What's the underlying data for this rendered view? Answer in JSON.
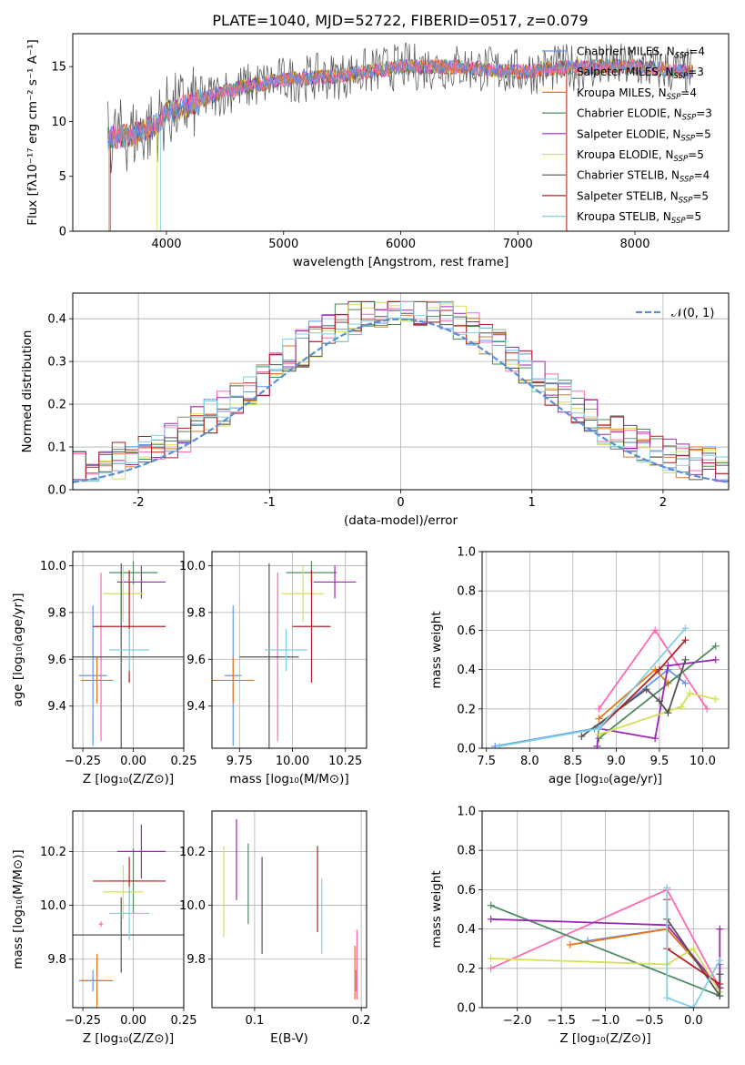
{
  "figure_title": "PLATE=1040, MJD=52722, FIBERID=0517, z=0.079",
  "colors": [
    "#6495ed",
    "#ff69b4",
    "#e8751a",
    "#4b8b5f",
    "#9a28b4",
    "#d4e157",
    "#555555",
    "#b22222",
    "#80d0e0"
  ],
  "chart_data": [
    {
      "id": "spectrum",
      "type": "line",
      "title": "PLATE=1040, MJD=52722, FIBERID=0517, z=0.079",
      "xlabel": "wavelength [Angstrom, rest frame]",
      "ylabel": "Flux [fλ10⁻¹⁷ erg cm⁻² s⁻¹ A⁻¹]",
      "xlim": [
        3200,
        8800
      ],
      "ylim": [
        0,
        18
      ],
      "xticks": [
        4000,
        5000,
        6000,
        7000,
        8000
      ],
      "yticks": [
        0,
        5,
        10,
        15
      ],
      "grid": false,
      "legend_location": "top-right",
      "continuum": [
        [
          3500,
          8.5
        ],
        [
          3700,
          8.8
        ],
        [
          3900,
          9.5
        ],
        [
          4000,
          10.8
        ],
        [
          4200,
          11.5
        ],
        [
          4500,
          12.8
        ],
        [
          5000,
          13.8
        ],
        [
          5500,
          14.2
        ],
        [
          6000,
          15.0
        ],
        [
          6500,
          15.0
        ],
        [
          7000,
          14.5
        ],
        [
          7500,
          15.0
        ],
        [
          8000,
          15.0
        ],
        [
          8500,
          14.5
        ]
      ],
      "series": [
        {
          "name": "Chabrier MILES, N_SSP=4",
          "color": "#6495ed"
        },
        {
          "name": "Salpeter MILES, N_SSP=3",
          "color": "#ff69b4"
        },
        {
          "name": "Kroupa MILES, N_SSP=4",
          "color": "#e8751a"
        },
        {
          "name": "Chabrier ELODIE, N_SSP=3",
          "color": "#4b8b5f"
        },
        {
          "name": "Salpeter ELODIE, N_SSP=5",
          "color": "#9a28b4"
        },
        {
          "name": "Kroupa ELODIE, N_SSP=5",
          "color": "#d4e157"
        },
        {
          "name": "Chabrier STELIB, N_SSP=4",
          "color": "#555555"
        },
        {
          "name": "Salpeter STELIB, N_SSP=5",
          "color": "#b22222"
        },
        {
          "name": "Kroupa STELIB, N_SSP=5",
          "color": "#80d0e0"
        }
      ]
    },
    {
      "id": "residuals",
      "type": "histogram",
      "xlabel": "(data-model)/error",
      "ylabel": "Normed distribution",
      "xlim": [
        -2.5,
        2.5
      ],
      "ylim": [
        0,
        0.46
      ],
      "xticks": [
        -2,
        -1,
        0,
        1,
        2
      ],
      "yticks": [
        0.0,
        0.1,
        0.2,
        0.3,
        0.4
      ],
      "grid": true,
      "legend_location": "top-right",
      "bins": [
        -2.5,
        -2.4,
        -2.3,
        -2.2,
        -2.1,
        -2.0,
        -1.9,
        -1.8,
        -1.7,
        -1.6,
        -1.5,
        -1.4,
        -1.3,
        -1.2,
        -1.1,
        -1.0,
        -0.9,
        -0.8,
        -0.7,
        -0.6,
        -0.5,
        -0.4,
        -0.3,
        -0.2,
        -0.1,
        0.0,
        0.1,
        0.2,
        0.3,
        0.4,
        0.5,
        0.6,
        0.7,
        0.8,
        0.9,
        1.0,
        1.1,
        1.2,
        1.3,
        1.4,
        1.5,
        1.6,
        1.7,
        1.8,
        1.9,
        2.0,
        2.1,
        2.2,
        2.3,
        2.4,
        2.5
      ],
      "reference": {
        "name": "𝒩(0, 1)",
        "mean": 0,
        "sigma": 1,
        "color": "#5a8fd6"
      },
      "series_colors": [
        "#6495ed",
        "#ff69b4",
        "#e8751a",
        "#4b8b5f",
        "#9a28b4",
        "#d4e157",
        "#555555",
        "#b22222",
        "#80d0e0"
      ]
    },
    {
      "id": "age_vs_z",
      "type": "errorbar",
      "xlabel": "Z [log₁₀(Z/Z⊙)]",
      "ylabel": "age  [log₁₀(age/yr)]",
      "xlim": [
        -0.3,
        0.25
      ],
      "ylim": [
        9.22,
        10.06
      ],
      "xticks": [
        -0.25,
        0.0,
        0.25
      ],
      "xticklabels": [
        "−0.25",
        "0.00",
        "0.25"
      ],
      "yticks": [
        9.4,
        9.6,
        9.8,
        10.0
      ],
      "grid": true,
      "points": [
        {
          "x": -0.2,
          "xerr": 0.07,
          "y": 9.53,
          "yerr": 0.3,
          "color": "#6495ed"
        },
        {
          "x": -0.16,
          "xerr": 0.01,
          "y": 9.61,
          "yerr": 0.36,
          "color": "#ff69b4"
        },
        {
          "x": -0.18,
          "xerr": 0.08,
          "y": 9.51,
          "yerr": 0.1,
          "color": "#e8751a"
        },
        {
          "x": 0.0,
          "xerr": 0.12,
          "y": 9.97,
          "yerr": 0.05,
          "color": "#4b8b5f"
        },
        {
          "x": 0.04,
          "xerr": 0.12,
          "y": 9.93,
          "yerr": 0.07,
          "color": "#9a28b4"
        },
        {
          "x": -0.05,
          "xerr": 0.1,
          "y": 9.88,
          "yerr": 0.12,
          "color": "#d4e157"
        },
        {
          "x": -0.06,
          "xerr": 0.35,
          "y": 9.61,
          "yerr": 0.4,
          "color": "#555555"
        },
        {
          "x": -0.02,
          "xerr": 0.18,
          "y": 9.74,
          "yerr": 0.24,
          "color": "#b22222"
        },
        {
          "x": -0.02,
          "xerr": 0.1,
          "y": 9.64,
          "yerr": 0.09,
          "color": "#80d0e0"
        }
      ]
    },
    {
      "id": "age_vs_mass",
      "type": "errorbar",
      "xlabel": "mass [log₁₀(M/M⊙)]",
      "ylabel": "",
      "xlim": [
        9.62,
        10.35
      ],
      "ylim": [
        9.22,
        10.06
      ],
      "xticks": [
        9.75,
        10.0,
        10.25
      ],
      "xticklabels": [
        "9.75",
        "10.00",
        "10.25"
      ],
      "yticks": [
        9.4,
        9.6,
        9.8,
        10.0
      ],
      "grid": true,
      "points": [
        {
          "x": 9.72,
          "xerr": 0.04,
          "y": 9.53,
          "yerr": 0.3,
          "color": "#6495ed"
        },
        {
          "x": 9.93,
          "xerr": 0.01,
          "y": 9.61,
          "yerr": 0.36,
          "color": "#ff69b4"
        },
        {
          "x": 9.72,
          "xerr": 0.1,
          "y": 9.51,
          "yerr": 0.1,
          "color": "#e8751a"
        },
        {
          "x": 10.09,
          "xerr": 0.12,
          "y": 9.97,
          "yerr": 0.05,
          "color": "#4b8b5f"
        },
        {
          "x": 10.2,
          "xerr": 0.1,
          "y": 9.93,
          "yerr": 0.07,
          "color": "#9a28b4"
        },
        {
          "x": 10.05,
          "xerr": 0.1,
          "y": 9.88,
          "yerr": 0.12,
          "color": "#d4e157"
        },
        {
          "x": 9.89,
          "xerr": 0.14,
          "y": 9.61,
          "yerr": 0.4,
          "color": "#555555"
        },
        {
          "x": 10.09,
          "xerr": 0.09,
          "y": 9.74,
          "yerr": 0.24,
          "color": "#b22222"
        },
        {
          "x": 9.97,
          "xerr": 0.1,
          "y": 9.64,
          "yerr": 0.09,
          "color": "#80d0e0"
        }
      ]
    },
    {
      "id": "weight_vs_age",
      "type": "line",
      "xlabel": "age  [log₁₀(age/yr)]",
      "ylabel": "mass weight",
      "xlim": [
        7.45,
        10.3
      ],
      "ylim": [
        0,
        1
      ],
      "xticks": [
        7.5,
        8.0,
        8.5,
        9.0,
        9.5,
        10.0
      ],
      "xticklabels": [
        "7.5",
        "8.0",
        "8.5",
        "9.0",
        "9.5",
        "10.0"
      ],
      "yticks": [
        0.0,
        0.2,
        0.4,
        0.6,
        0.8,
        1.0
      ],
      "grid": true,
      "series": [
        {
          "color": "#6495ed",
          "points": [
            [
              7.6,
              0.01
            ],
            [
              8.75,
              0.1
            ],
            [
              9.6,
              0.4
            ],
            [
              9.8,
              0.33
            ]
          ]
        },
        {
          "color": "#ff69b4",
          "points": [
            [
              8.8,
              0.2
            ],
            [
              9.45,
              0.6
            ],
            [
              10.05,
              0.2
            ]
          ]
        },
        {
          "color": "#e8751a",
          "points": [
            [
              8.8,
              0.15
            ],
            [
              9.45,
              0.4
            ],
            [
              9.6,
              0.33
            ]
          ]
        },
        {
          "color": "#4b8b5f",
          "points": [
            [
              8.8,
              0.05
            ],
            [
              10.15,
              0.52
            ]
          ]
        },
        {
          "color": "#9a28b4",
          "points": [
            [
              8.78,
              0.01
            ],
            [
              8.8,
              0.1
            ],
            [
              9.45,
              0.05
            ],
            [
              9.6,
              0.42
            ],
            [
              10.15,
              0.45
            ]
          ]
        },
        {
          "color": "#d4e157",
          "points": [
            [
              8.8,
              0.07
            ],
            [
              9.75,
              0.21
            ],
            [
              9.85,
              0.28
            ],
            [
              10.15,
              0.25
            ]
          ]
        },
        {
          "color": "#555555",
          "points": [
            [
              8.6,
              0.06
            ],
            [
              9.35,
              0.3
            ],
            [
              9.5,
              0.24
            ],
            [
              9.6,
              0.18
            ],
            [
              9.8,
              0.45
            ]
          ]
        },
        {
          "color": "#b22222",
          "points": [
            [
              8.8,
              0.1
            ],
            [
              9.5,
              0.4
            ],
            [
              9.8,
              0.55
            ]
          ]
        },
        {
          "color": "#80d0e0",
          "points": [
            [
              7.65,
              0.01
            ],
            [
              8.8,
              0.1
            ],
            [
              9.8,
              0.61
            ]
          ]
        }
      ]
    },
    {
      "id": "mass_vs_z",
      "type": "errorbar",
      "xlabel": "Z [log₁₀(Z/Z⊙)]",
      "ylabel": "mass [log₁₀(M/M⊙)]",
      "xlim": [
        -0.3,
        0.25
      ],
      "ylim": [
        9.62,
        10.35
      ],
      "xticks": [
        -0.25,
        0.0,
        0.25
      ],
      "xticklabels": [
        "−0.25",
        "0.00",
        "0.25"
      ],
      "yticks": [
        9.8,
        10.0,
        10.2
      ],
      "grid": true,
      "points": [
        {
          "x": -0.2,
          "xerr": 0.07,
          "y": 9.72,
          "yerr": 0.04,
          "color": "#6495ed"
        },
        {
          "x": -0.16,
          "xerr": 0.01,
          "y": 9.93,
          "yerr": 0.01,
          "color": "#ff69b4"
        },
        {
          "x": -0.18,
          "xerr": 0.08,
          "y": 9.72,
          "yerr": 0.1,
          "color": "#e8751a"
        },
        {
          "x": 0.0,
          "xerr": 0.12,
          "y": 10.09,
          "yerr": 0.12,
          "color": "#4b8b5f"
        },
        {
          "x": 0.04,
          "xerr": 0.12,
          "y": 10.2,
          "yerr": 0.1,
          "color": "#9a28b4"
        },
        {
          "x": -0.05,
          "xerr": 0.1,
          "y": 10.05,
          "yerr": 0.1,
          "color": "#d4e157"
        },
        {
          "x": -0.06,
          "xerr": 0.35,
          "y": 9.89,
          "yerr": 0.14,
          "color": "#555555"
        },
        {
          "x": -0.02,
          "xerr": 0.18,
          "y": 10.09,
          "yerr": 0.09,
          "color": "#b22222"
        },
        {
          "x": -0.02,
          "xerr": 0.1,
          "y": 9.97,
          "yerr": 0.1,
          "color": "#80d0e0"
        }
      ]
    },
    {
      "id": "mass_vs_ebv",
      "type": "errorbar",
      "xlabel": "E(B-V)",
      "ylabel": "",
      "xlim": [
        0.06,
        0.205
      ],
      "ylim": [
        9.62,
        10.35
      ],
      "xticks": [
        0.1,
        0.2
      ],
      "xticklabels": [
        "0.1",
        "0.2"
      ],
      "yticks": [
        9.8,
        10.0,
        10.2
      ],
      "grid": true,
      "points": [
        {
          "x": 0.195,
          "xerr": 0,
          "y": 9.72,
          "yerr": 0.04,
          "color": "#6495ed"
        },
        {
          "x": 0.196,
          "xerr": 0,
          "y": 9.78,
          "yerr": 0.13,
          "color": "#ff69b4"
        },
        {
          "x": 0.194,
          "xerr": 0,
          "y": 9.75,
          "yerr": 0.1,
          "color": "#e8751a"
        },
        {
          "x": 0.094,
          "xerr": 0,
          "y": 10.08,
          "yerr": 0.15,
          "color": "#4b8b5f"
        },
        {
          "x": 0.083,
          "xerr": 0,
          "y": 10.17,
          "yerr": 0.15,
          "color": "#9a28b4"
        },
        {
          "x": 0.071,
          "xerr": 0,
          "y": 10.05,
          "yerr": 0.17,
          "color": "#d4e157"
        },
        {
          "x": 0.107,
          "xerr": 0,
          "y": 10.0,
          "yerr": 0.18,
          "color": "#555555"
        },
        {
          "x": 0.159,
          "xerr": 0,
          "y": 10.06,
          "yerr": 0.16,
          "color": "#b22222"
        },
        {
          "x": 0.163,
          "xerr": 0,
          "y": 9.96,
          "yerr": 0.14,
          "color": "#80d0e0"
        }
      ]
    },
    {
      "id": "weight_vs_z",
      "type": "line",
      "xlabel": "Z [log₁₀(Z/Z⊙)]",
      "ylabel": "mass weight",
      "xlim": [
        -2.4,
        0.4
      ],
      "ylim": [
        0,
        1
      ],
      "xticks": [
        -2.0,
        -1.5,
        -1.0,
        -0.5,
        0.0
      ],
      "xticklabels": [
        "−2.0",
        "−1.5",
        "−1.0",
        "−0.5",
        "0.0"
      ],
      "yticks": [
        0.0,
        0.2,
        0.4,
        0.6,
        0.8,
        1.0
      ],
      "grid": true,
      "series": [
        {
          "color": "#6495ed",
          "points": [
            [
              -1.2,
              0.34
            ],
            [
              -0.3,
              0.4
            ],
            [
              0.3,
              0.1
            ],
            [
              0.3,
              0.22
            ]
          ]
        },
        {
          "color": "#ff69b4",
          "points": [
            [
              -2.3,
              0.2
            ],
            [
              -0.3,
              0.6
            ],
            [
              0.3,
              0.1
            ]
          ]
        },
        {
          "color": "#e8751a",
          "points": [
            [
              -1.4,
              0.32
            ],
            [
              -0.3,
              0.4
            ],
            [
              0.3,
              0.1
            ]
          ]
        },
        {
          "color": "#4b8b5f",
          "points": [
            [
              -2.3,
              0.52
            ],
            [
              0.3,
              0.06
            ]
          ]
        },
        {
          "color": "#9a28b4",
          "points": [
            [
              -2.3,
              0.45
            ],
            [
              -0.3,
              0.42
            ],
            [
              0.3,
              0.1
            ],
            [
              0.3,
              0.4
            ]
          ]
        },
        {
          "color": "#d4e157",
          "points": [
            [
              -2.3,
              0.25
            ],
            [
              -0.3,
              0.22
            ],
            [
              0.0,
              0.3
            ],
            [
              0.3,
              0.08
            ]
          ]
        },
        {
          "color": "#555555",
          "points": [
            [
              -0.3,
              0.45
            ],
            [
              0.3,
              0.06
            ],
            [
              0.3,
              0.17
            ]
          ]
        },
        {
          "color": "#b22222",
          "points": [
            [
              -0.3,
              0.55
            ],
            [
              -0.3,
              0.3
            ],
            [
              0.3,
              0.12
            ]
          ]
        },
        {
          "color": "#80d0e0",
          "points": [
            [
              -0.3,
              0.61
            ],
            [
              -0.3,
              0.05
            ],
            [
              0.0,
              0.0
            ],
            [
              0.3,
              0.24
            ]
          ]
        }
      ]
    }
  ]
}
